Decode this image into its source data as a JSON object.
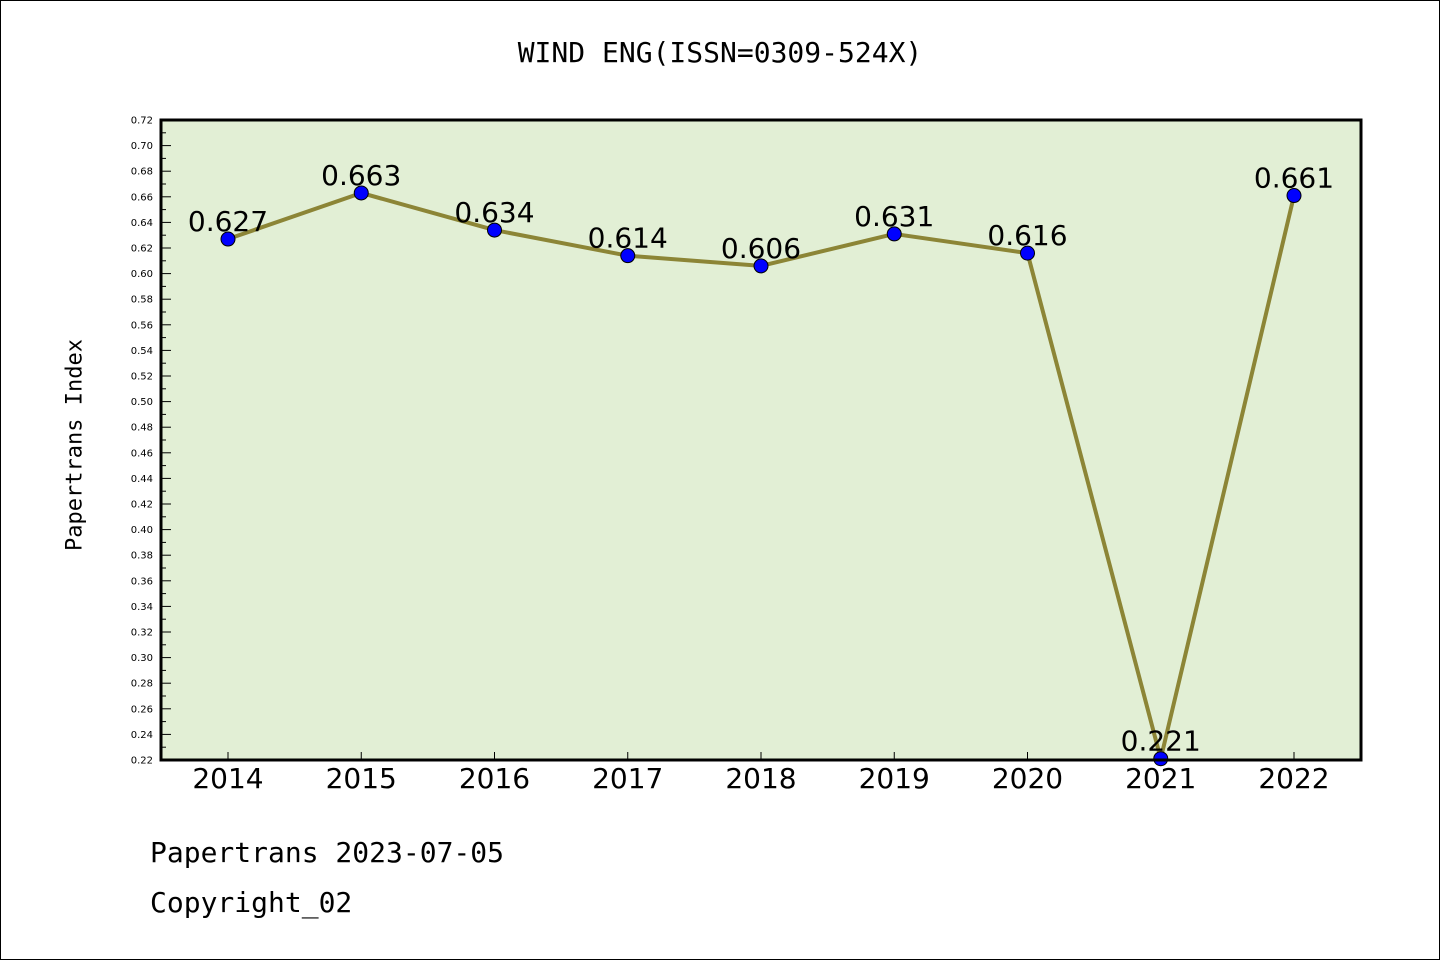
{
  "chart_data": {
    "type": "line",
    "title": "WIND ENG(ISSN=0309-524X)",
    "ylabel": "Papertrans Index",
    "xlabel": "",
    "categories": [
      "2014",
      "2015",
      "2016",
      "2017",
      "2018",
      "2019",
      "2020",
      "2021",
      "2022"
    ],
    "values": [
      0.627,
      0.663,
      0.634,
      0.614,
      0.606,
      0.631,
      0.616,
      0.221,
      0.661
    ],
    "data_labels": [
      "0.627",
      "0.663",
      "0.634",
      "0.614",
      "0.606",
      "0.631",
      "0.616",
      "0.221",
      "0.661"
    ],
    "ylim": [
      0.22,
      0.72
    ],
    "yticks": [
      "0.22",
      "0.24",
      "0.26",
      "0.28",
      "0.30",
      "0.32",
      "0.34",
      "0.36",
      "0.38",
      "0.40",
      "0.42",
      "0.44",
      "0.46",
      "0.48",
      "0.50",
      "0.52",
      "0.54",
      "0.56",
      "0.58",
      "0.60",
      "0.62",
      "0.64",
      "0.66",
      "0.68",
      "0.70",
      "0.72"
    ],
    "grid": false,
    "colors": {
      "plot_background": "#e2efd5",
      "line": "#8c8536",
      "marker": "#0000ff"
    }
  },
  "footer": {
    "line1": "Papertrans 2023-07-05",
    "line2": "Copyright_02"
  }
}
